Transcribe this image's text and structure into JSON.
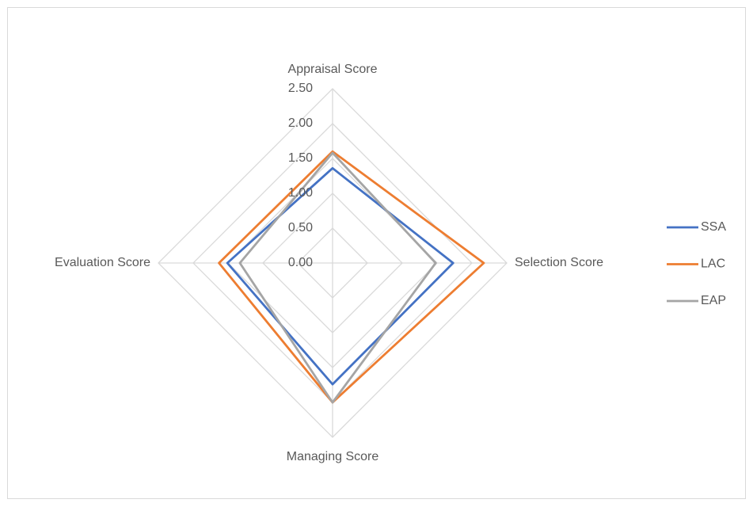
{
  "chart_data": {
    "type": "radar",
    "categories": [
      "Appraisal Score",
      "Selection Score",
      "Managing Score",
      "Evaluation Score"
    ],
    "series": [
      {
        "name": "SSA",
        "color": "#4472c4",
        "values": [
          1.36,
          1.73,
          1.74,
          1.51
        ]
      },
      {
        "name": "LAC",
        "color": "#ed7d31",
        "values": [
          1.6,
          2.17,
          2.0,
          1.63
        ]
      },
      {
        "name": "EAP",
        "color": "#a5a5a5",
        "values": [
          1.58,
          1.48,
          2.0,
          1.33
        ]
      }
    ],
    "ylim": [
      0,
      2.5
    ],
    "yticks": [
      {
        "value": 0,
        "label": "0.00"
      },
      {
        "value": 0.5,
        "label": "0.50"
      },
      {
        "value": 1,
        "label": "1.00"
      },
      {
        "value": 1.5,
        "label": "1.50"
      },
      {
        "value": 2,
        "label": "2.00"
      },
      {
        "value": 2.5,
        "label": "2.50"
      }
    ],
    "grid": true,
    "legend": "right"
  }
}
